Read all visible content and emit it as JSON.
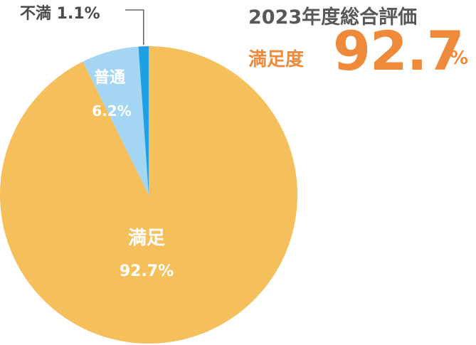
{
  "header": {
    "title": "2023年度総合評価",
    "score_label": "満足度",
    "score_value": "92.7",
    "score_unit": "%"
  },
  "colors": {
    "satisfied": "#f5bf5b",
    "normal": "#a4d6f4",
    "dissatisfied": "#1ea0e2",
    "accent": "#ee8a3a",
    "title": "#595757",
    "callout": "#4a4a4a"
  },
  "chart_data": {
    "type": "pie",
    "title": "2023年度総合評価",
    "slices": [
      {
        "name": "満足",
        "value": 92.7,
        "label": "92.7%"
      },
      {
        "name": "普通",
        "value": 6.2,
        "label": "6.2%"
      },
      {
        "name": "不満",
        "value": 1.1,
        "label": "1.1%"
      }
    ]
  }
}
